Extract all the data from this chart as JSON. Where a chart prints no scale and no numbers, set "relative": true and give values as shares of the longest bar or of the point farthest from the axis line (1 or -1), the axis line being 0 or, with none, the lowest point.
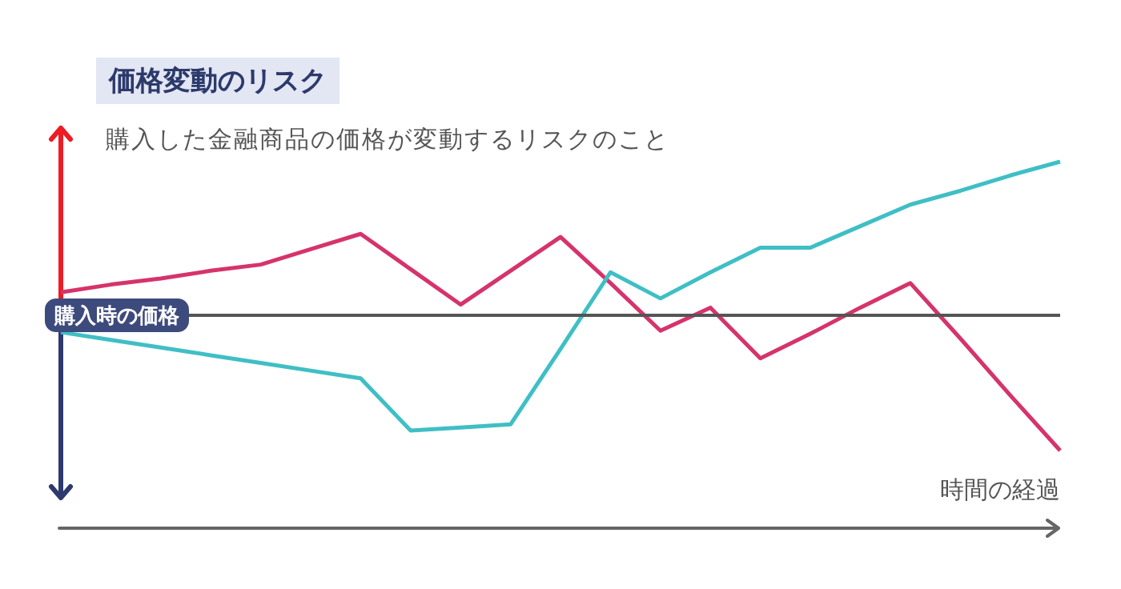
{
  "chart_data": {
    "type": "line",
    "title": "価格変動のリスク",
    "subtitle": "購入した金融商品の価格が変動するリスクのこと",
    "xlabel": "時間の経過",
    "relative": true,
    "marker": "none",
    "line_style": "solid",
    "categories": [
      null,
      null,
      null,
      null,
      null,
      null,
      null,
      null,
      null,
      null,
      null,
      null,
      null,
      null,
      null,
      null,
      null,
      null,
      null,
      null,
      null
    ],
    "series": [
      {
        "color": "#d6336c",
        "values": [
          0.15,
          0.2,
          0.24,
          0.29,
          0.33,
          0.43,
          0.53,
          0.3,
          0.07,
          0.29,
          0.51,
          0.21,
          -0.1,
          0.05,
          -0.28,
          -0.12,
          0.05,
          0.21,
          -0.15,
          -0.52,
          -0.88
        ]
      },
      {
        "color": "#3fbfc5",
        "values": [
          -0.11,
          -0.16,
          -0.21,
          -0.26,
          -0.31,
          -0.36,
          -0.41,
          -0.75,
          -0.73,
          -0.71,
          -0.22,
          0.28,
          0.11,
          0.28,
          0.44,
          0.44,
          0.58,
          0.72,
          0.81,
          0.91,
          1
        ]
      }
    ],
    "ref_lines": [
      {
        "axis": "y",
        "value": 0,
        "label": "購入時の価格",
        "color": "#555555"
      }
    ]
  }
}
